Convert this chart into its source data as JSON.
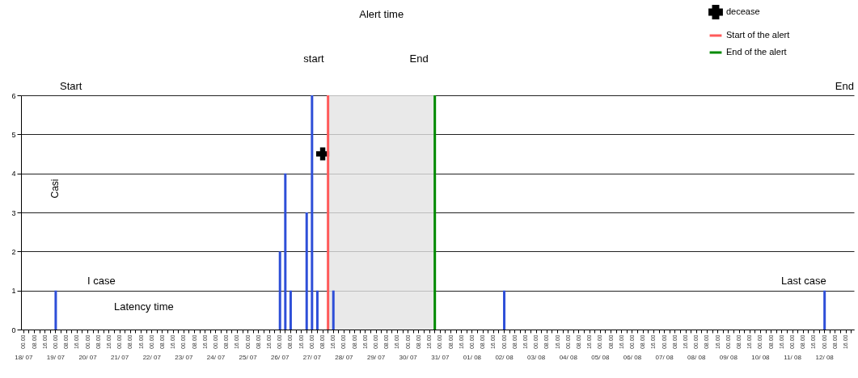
{
  "chart_data": {
    "type": "bar",
    "ylabel": "Casi",
    "categories": [
      "00.00\n18/ 07",
      null,
      "08.00",
      null,
      "16.00",
      null,
      "00.00\n19/ 07",
      null,
      "08.00",
      null,
      "16.00",
      null,
      "00.00\n20/ 07",
      null,
      "08.00",
      null,
      "16.00",
      null,
      "00.00\n21/ 07",
      null,
      "08.00",
      null,
      "16.00",
      null,
      "00.00\n22/ 07",
      null,
      "08.00",
      null,
      "16.00",
      null,
      "00.00\n23/ 07",
      null,
      "08.00",
      null,
      "16.00",
      null,
      "00.00\n24/ 07",
      null,
      "08.00",
      null,
      "16.00",
      null,
      "00.00\n25/ 07",
      null,
      "08.00",
      null,
      "16.00",
      null,
      "00.00\n26/ 07",
      null,
      "08.00",
      null,
      "16.00",
      null,
      "00.00\n27/ 07",
      null,
      "08.00",
      null,
      "16.00",
      null,
      "00.00\n28/ 07",
      null,
      "08.00",
      null,
      "16.00",
      null,
      "00.00\n29/ 07",
      null,
      "08.00",
      null,
      "16.00",
      null,
      "00.00\n30/ 07",
      null,
      "08.00",
      null,
      "16.00",
      null,
      "00.00\n31/ 07",
      null,
      "08.00",
      null,
      "16.00",
      null,
      "00.00\n01/ 08",
      null,
      "08.00",
      null,
      "16.00",
      null,
      "00.00\n02/ 08",
      null,
      "08.00",
      null,
      "16.00",
      null,
      "00.00\n03/ 08",
      null,
      "08.00",
      null,
      "16.00",
      null,
      "00.00\n04/ 08",
      null,
      "08.00",
      null,
      "16.00",
      null,
      "00.00\n05/ 08",
      null,
      "08.00",
      null,
      "16.00",
      null,
      "00.00\n06/ 08",
      null,
      "08.00",
      null,
      "16.00",
      null,
      "00.00\n07/ 08",
      null,
      "08.00",
      null,
      "16.00",
      null,
      "00.00\n08/ 08",
      null,
      "08.00",
      null,
      "16.00",
      null,
      "00.00\n09/ 08",
      null,
      "08.00",
      null,
      "16.00",
      null,
      "00.00\n10/ 08",
      null,
      "08.00",
      null,
      "16.00",
      null,
      "00.00\n11/ 08",
      null,
      "08.00",
      null,
      "16.00",
      null,
      "00.00\n12/ 08",
      null,
      "08.00",
      null,
      "16.00",
      null
    ],
    "series": [
      {
        "color": "#2e4fd8",
        "values": [
          0,
          0,
          0,
          0,
          0,
          0,
          1,
          0,
          0,
          0,
          0,
          0,
          0,
          0,
          0,
          0,
          0,
          0,
          0,
          0,
          0,
          0,
          0,
          0,
          0,
          0,
          0,
          0,
          0,
          0,
          0,
          0,
          0,
          0,
          0,
          0,
          0,
          0,
          0,
          0,
          0,
          0,
          0,
          0,
          0,
          0,
          0,
          0,
          2,
          4,
          1,
          0,
          0,
          3,
          6,
          1,
          0,
          0,
          1,
          0,
          0,
          0,
          0,
          0,
          0,
          0,
          0,
          0,
          0,
          0,
          0,
          0,
          0,
          0,
          0,
          0,
          0,
          0,
          0,
          0,
          0,
          0,
          0,
          0,
          0,
          0,
          0,
          0,
          0,
          0,
          1,
          0,
          0,
          0,
          0,
          0,
          0,
          0,
          0,
          0,
          0,
          0,
          0,
          0,
          0,
          0,
          0,
          0,
          0,
          0,
          0,
          0,
          0,
          0,
          0,
          0,
          0,
          0,
          0,
          0,
          0,
          0,
          0,
          0,
          0,
          0,
          0,
          0,
          0,
          0,
          0,
          0,
          0,
          0,
          0,
          0,
          0,
          0,
          0,
          0,
          0,
          0,
          0,
          0,
          0,
          0,
          0,
          0,
          0,
          0,
          1,
          0,
          0,
          0,
          0,
          0
        ]
      },
      {
        "type": "scatter",
        "name": "decease",
        "color": "#000000",
        "marker": "cross",
        "values": [
          null,
          null,
          null,
          null,
          null,
          null,
          null,
          null,
          null,
          null,
          null,
          null,
          null,
          null,
          null,
          null,
          null,
          null,
          null,
          null,
          null,
          null,
          null,
          null,
          null,
          null,
          null,
          null,
          null,
          null,
          null,
          null,
          null,
          null,
          null,
          null,
          null,
          null,
          null,
          null,
          null,
          null,
          null,
          null,
          null,
          null,
          null,
          null,
          null,
          null,
          null,
          null,
          null,
          null,
          null,
          null,
          4.5,
          null,
          null,
          null,
          null,
          null,
          null,
          null,
          null,
          null,
          null,
          null,
          null,
          null,
          null,
          null,
          null,
          null,
          null,
          null,
          null,
          null,
          null,
          null,
          null,
          null,
          null,
          null,
          null,
          null,
          null,
          null,
          null,
          null,
          null,
          null,
          null,
          null,
          null,
          null,
          null,
          null,
          null,
          null,
          null,
          null,
          null,
          null,
          null,
          null,
          null,
          null,
          null,
          null,
          null,
          null,
          null,
          null,
          null,
          null,
          null,
          null,
          null,
          null,
          null,
          null,
          null,
          null,
          null,
          null,
          null,
          null,
          null,
          null,
          null,
          null,
          null,
          null,
          null,
          null,
          null,
          null,
          null,
          null,
          null,
          null,
          null,
          null,
          null,
          null,
          null,
          null,
          null,
          null,
          null,
          null,
          null,
          null,
          null,
          null
        ]
      }
    ],
    "ref_lines": [
      {
        "axis": "x",
        "label": "Start of the alert",
        "color": "#ff5a5a"
      },
      {
        "axis": "x",
        "label": "End of the alert",
        "color": "#008a00"
      }
    ],
    "annotations": [
      "Alert time",
      "start",
      "End",
      "Start",
      "End",
      "I case",
      "Latency time",
      "Last case"
    ],
    "ylim": [
      0,
      6
    ],
    "yticks": [
      0,
      1,
      2,
      3,
      4,
      5,
      6
    ],
    "grid": "y",
    "legend": "top right"
  }
}
